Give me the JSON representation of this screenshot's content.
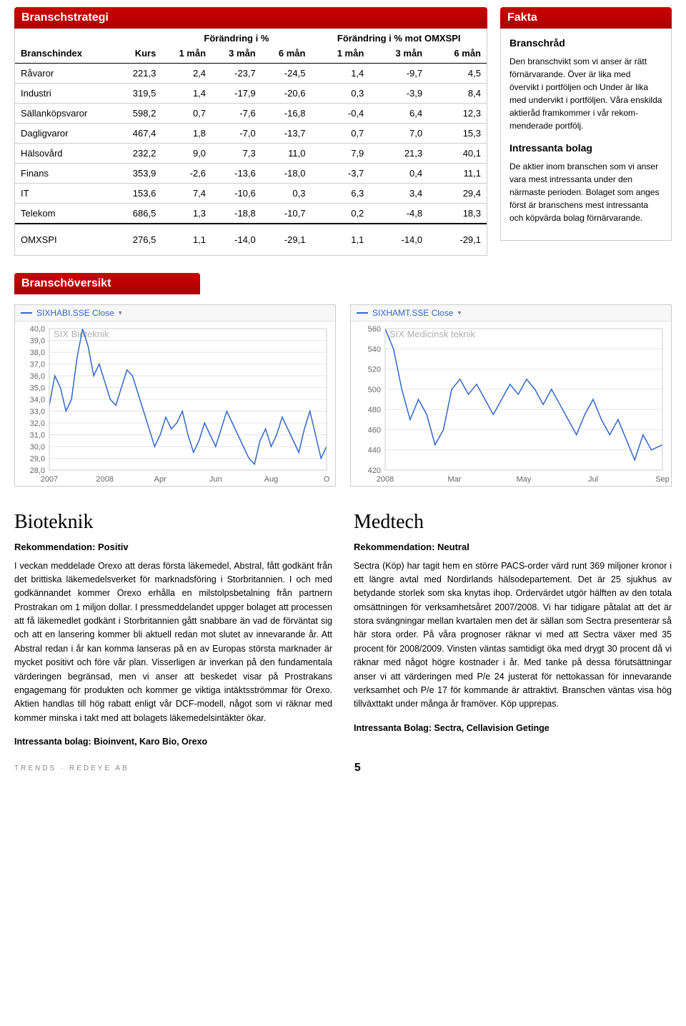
{
  "header_tables": {
    "title": "Branschstrategi",
    "col_group_labels": [
      "Förändring i %",
      "Förändring i % mot OMXSPI"
    ],
    "columns": [
      "Branschindex",
      "Kurs",
      "1 mån",
      "3 mån",
      "6 mån",
      "1 mån",
      "3 mån",
      "6 mån"
    ],
    "rows": [
      [
        "Råvaror",
        "221,3",
        "2,4",
        "-23,7",
        "-24,5",
        "1,4",
        "-9,7",
        "4,5"
      ],
      [
        "Industri",
        "319,5",
        "1,4",
        "-17,9",
        "-20,6",
        "0,3",
        "-3,9",
        "8,4"
      ],
      [
        "Sällanköpsvaror",
        "598,2",
        "0,7",
        "-7,6",
        "-16,8",
        "-0,4",
        "6,4",
        "12,3"
      ],
      [
        "Dagligvaror",
        "467,4",
        "1,8",
        "-7,0",
        "-13,7",
        "0,7",
        "7,0",
        "15,3"
      ],
      [
        "Hälsovård",
        "232,2",
        "9,0",
        "7,3",
        "11,0",
        "7,9",
        "21,3",
        "40,1"
      ],
      [
        "Finans",
        "353,9",
        "-2,6",
        "-13,6",
        "-18,0",
        "-3,7",
        "0,4",
        "11,1"
      ],
      [
        "IT",
        "153,6",
        "7,4",
        "-10,6",
        "0,3",
        "6,3",
        "3,4",
        "29,4"
      ],
      [
        "Telekom",
        "686,5",
        "1,3",
        "-18,8",
        "-10,7",
        "0,2",
        "-4,8",
        "18,3"
      ]
    ],
    "footer_row": [
      "OMXSPI",
      "276,5",
      "1,1",
      "-14,0",
      "-29,1",
      "1,1",
      "-14,0",
      "-29,1"
    ]
  },
  "fakta": {
    "title": "Fakta",
    "h1": "Branschråd",
    "p1": "Den branschvikt som vi anser är rätt förnärvarande. Över är lika med övervikt i portföljen och Under är lika med undervikt i portföljen. Våra enskilda aktieråd framkommer i vår rekom­menderade portfölj.",
    "h2": "Intressanta bolag",
    "p2": "De aktier inom branschen som vi anser vara mest intressanta under den närmaste perioden. Bolaget som anges först är branschens mest intressanta och köpvärda bolag förnärvarande."
  },
  "overview_header": "Branschöversikt",
  "chart1": {
    "legend": "SIXHABI.SSE Close",
    "inner_title": "SIX Bioteknik",
    "y_ticks": [
      "40,0",
      "39,0",
      "38,0",
      "37,0",
      "36,0",
      "35,0",
      "34,0",
      "33,0",
      "32,0",
      "31,0",
      "30,0",
      "29,0",
      "28,0"
    ],
    "x_ticks": [
      "2007",
      "2008",
      "Apr",
      "Jun",
      "Aug",
      "O"
    ],
    "line_color": "#3366cc",
    "grid_color": "#e5e5e5",
    "text_color": "#666666",
    "background": "#ffffff",
    "y_min": 28,
    "y_max": 40,
    "points": [
      [
        0,
        33.5
      ],
      [
        2,
        36.0
      ],
      [
        4,
        35.0
      ],
      [
        6,
        33.0
      ],
      [
        8,
        34.0
      ],
      [
        10,
        37.5
      ],
      [
        12,
        40.0
      ],
      [
        14,
        38.5
      ],
      [
        16,
        36.0
      ],
      [
        18,
        37.0
      ],
      [
        20,
        35.5
      ],
      [
        22,
        34.0
      ],
      [
        24,
        33.5
      ],
      [
        26,
        35.0
      ],
      [
        28,
        36.5
      ],
      [
        30,
        36.0
      ],
      [
        32,
        34.5
      ],
      [
        34,
        33.0
      ],
      [
        36,
        31.5
      ],
      [
        38,
        30.0
      ],
      [
        40,
        31.0
      ],
      [
        42,
        32.5
      ],
      [
        44,
        31.5
      ],
      [
        46,
        32.0
      ],
      [
        48,
        33.0
      ],
      [
        50,
        31.0
      ],
      [
        52,
        29.5
      ],
      [
        54,
        30.5
      ],
      [
        56,
        32.0
      ],
      [
        58,
        31.0
      ],
      [
        60,
        30.0
      ],
      [
        62,
        31.5
      ],
      [
        64,
        33.0
      ],
      [
        66,
        32.0
      ],
      [
        68,
        31.0
      ],
      [
        70,
        30.0
      ],
      [
        72,
        29.0
      ],
      [
        74,
        28.5
      ],
      [
        76,
        30.5
      ],
      [
        78,
        31.5
      ],
      [
        80,
        30.0
      ],
      [
        82,
        31.0
      ],
      [
        84,
        32.5
      ],
      [
        86,
        31.5
      ],
      [
        88,
        30.5
      ],
      [
        90,
        29.5
      ],
      [
        92,
        31.5
      ],
      [
        94,
        33.0
      ],
      [
        96,
        31.0
      ],
      [
        98,
        29.0
      ],
      [
        100,
        30.0
      ]
    ]
  },
  "chart2": {
    "legend": "SIXHAMT.SSE Close",
    "inner_title": "SIX Medicinsk teknik",
    "y_ticks": [
      "560",
      "540",
      "520",
      "500",
      "480",
      "460",
      "440",
      "420"
    ],
    "x_ticks": [
      "2008",
      "Mar",
      "May",
      "Jul",
      "Sep"
    ],
    "line_color": "#3366cc",
    "grid_color": "#e5e5e5",
    "text_color": "#666666",
    "background": "#ffffff",
    "y_min": 420,
    "y_max": 560,
    "points": [
      [
        0,
        560
      ],
      [
        3,
        540
      ],
      [
        6,
        500
      ],
      [
        9,
        470
      ],
      [
        12,
        490
      ],
      [
        15,
        475
      ],
      [
        18,
        445
      ],
      [
        21,
        460
      ],
      [
        24,
        500
      ],
      [
        27,
        510
      ],
      [
        30,
        495
      ],
      [
        33,
        505
      ],
      [
        36,
        490
      ],
      [
        39,
        475
      ],
      [
        42,
        490
      ],
      [
        45,
        505
      ],
      [
        48,
        495
      ],
      [
        51,
        510
      ],
      [
        54,
        500
      ],
      [
        57,
        485
      ],
      [
        60,
        500
      ],
      [
        63,
        485
      ],
      [
        66,
        470
      ],
      [
        69,
        455
      ],
      [
        72,
        475
      ],
      [
        75,
        490
      ],
      [
        78,
        470
      ],
      [
        81,
        455
      ],
      [
        84,
        470
      ],
      [
        87,
        450
      ],
      [
        90,
        430
      ],
      [
        93,
        455
      ],
      [
        96,
        440
      ],
      [
        100,
        445
      ]
    ]
  },
  "article1": {
    "title": "Bioteknik",
    "rek": "Rekommendation: Positiv",
    "body": "I veckan meddelade Orexo att deras första läkemedel, Abstral, fått godkänt från det brittiska läkemedelsverket för marknadsföring i Storbritannien. I och med godkännandet kommer Orexo erhålla en milstolpsbetalning från partnern Prostrakan om 1 miljon dollar. I pressmeddelandet uppger bolaget att processen att få läkemedlet godkänt i Storbritannien gått snabbare än vad de förväntat sig och att en lansering kommer bli aktuell redan mot slutet av innevarande år. Att Abstral redan i år kan komma lanseras på en av Europas största marknader är mycket positivt och före vår plan. Visserligen är inverkan på den fundamentala värderingen begränsad, men vi anser att beskedet visar på Prostrakans engagemang för produkten och kommer ge viktiga intäktsströmmar för Orexo. Aktien handlas till hög rabatt enligt vår DCF-modell, något som vi räknar med kommer minska i takt med att bolagets läkemedelsintäkter ökar.",
    "footer": "Intressanta bolag: Bioinvent, Karo Bio, Orexo"
  },
  "article2": {
    "title": "Medtech",
    "rek": "Rekommendation: Neutral",
    "body": "Sectra (Köp) har tagit hem en större PACS-order värd runt 369 miljoner kronor i ett längre avtal med Nordirlands hälsodepartement. Det är 25 sjukhus av betydande storlek som ska knytas ihop. Ordervärdet utgör hälften av den totala omsättningen för verksamhetsåret 2007/2008. Vi har tidigare påtalat att det är stora svängningar mellan kvartalen men det är sällan som Sectra presenterar så här stora order. På våra prognoser räknar vi med att Sectra växer med 35 procent för 2008/2009. Vinsten väntas samtidigt öka med drygt 30 procent då vi räknar med något högre kostnader i år. Med tanke på dessa förutsättningar anser vi att värderingen med P/e 24 justerat för nettokassan för innevarande verksamhet och P/e 17 för kommande är attraktivt. Branschen väntas visa hög tillväxttakt under många år framöver. Köp upprepas.",
    "footer": "Intressanta Bolag: Sectra, Cellavision Getinge"
  },
  "page_footer": {
    "left": "TRENDS  ·  REDEYE AB",
    "page_no": "5"
  }
}
